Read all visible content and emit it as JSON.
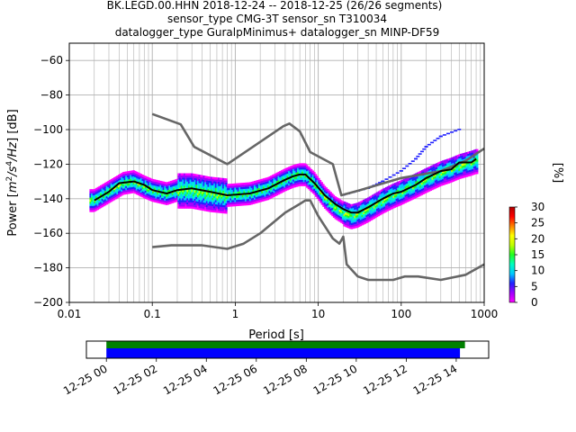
{
  "title_lines": [
    "BK.LEGD.00.HHN   2018-12-24 -- 2018-12-25  (26/26 segments)",
    "sensor_type CMG-3T sensor_sn T310034",
    "datalogger_type GuralpMinimus+ datalogger_sn MINP-DF59"
  ],
  "chart_data": [
    {
      "type": "heatmap",
      "title": "BK.LEGD.00.HHN   2018-12-24 -- 2018-12-25  (26/26 segments)",
      "xlabel": "Period [s]",
      "ylabel_parts": [
        "Power [",
        "m",
        "2",
        "/s",
        "4",
        "/Hz",
        "] [dB]"
      ],
      "xscale": "log",
      "xlim": [
        0.01,
        1000
      ],
      "ylim": [
        -200,
        -50
      ],
      "xticks": [
        0.01,
        0.1,
        1,
        10,
        100,
        1000
      ],
      "xtick_labels": [
        "0.01",
        "0.1",
        "1",
        "10",
        "100",
        "1000"
      ],
      "yticks": [
        -60,
        -80,
        -100,
        -120,
        -140,
        -160,
        -180,
        -200
      ],
      "ytick_labels": [
        "−60",
        "−80",
        "−100",
        "−120",
        "−140",
        "−160",
        "−180",
        "−200"
      ],
      "grid": true,
      "colorbar": {
        "label": "[%]",
        "range": [
          0,
          30
        ],
        "ticks": [
          0,
          5,
          10,
          15,
          20,
          25,
          30
        ],
        "tick_labels": [
          "0",
          "5",
          "10",
          "15",
          "20",
          "25",
          "30"
        ],
        "colors": [
          "#ff00ff",
          "#a000ff",
          "#2020ff",
          "#00c8ff",
          "#00ffc0",
          "#20ff20",
          "#c0ff00",
          "#ffff00",
          "#ff8000",
          "#ff0000",
          "#b00000"
        ]
      },
      "series": [
        {
          "role": "noise-model-high",
          "color": "#666666",
          "points": [
            [
              0.1,
              -91
            ],
            [
              0.22,
              -97
            ],
            [
              0.32,
              -110
            ],
            [
              0.8,
              -120
            ],
            [
              3.8,
              -98
            ],
            [
              4.5,
              -96.5
            ],
            [
              6,
              -101
            ],
            [
              8,
              -113
            ],
            [
              15,
              -120
            ],
            [
              19,
              -138
            ],
            [
              32,
              -135
            ],
            [
              100,
              -128
            ],
            [
              300,
              -124
            ],
            [
              600,
              -118
            ],
            [
              1000,
              -111
            ]
          ]
        },
        {
          "role": "noise-model-low",
          "color": "#666666",
          "points": [
            [
              0.1,
              -168
            ],
            [
              0.17,
              -167
            ],
            [
              0.4,
              -167
            ],
            [
              0.8,
              -169
            ],
            [
              1.26,
              -166
            ],
            [
              2,
              -160
            ],
            [
              4,
              -148
            ],
            [
              6,
              -143
            ],
            [
              7,
              -141
            ],
            [
              8,
              -141
            ],
            [
              10,
              -150
            ],
            [
              15,
              -163
            ],
            [
              18,
              -166
            ],
            [
              20,
              -162
            ],
            [
              22,
              -178
            ],
            [
              30,
              -185
            ],
            [
              40,
              -187
            ],
            [
              80,
              -187
            ],
            [
              110,
              -185
            ],
            [
              160,
              -185
            ],
            [
              300,
              -187
            ],
            [
              600,
              -184
            ],
            [
              1000,
              -178
            ]
          ]
        },
        {
          "role": "mode",
          "color": "#000000",
          "points": [
            [
              0.02,
              -141
            ],
            [
              0.03,
              -136
            ],
            [
              0.04,
              -131
            ],
            [
              0.06,
              -130
            ],
            [
              0.08,
              -132
            ],
            [
              0.1,
              -135
            ],
            [
              0.15,
              -137
            ],
            [
              0.2,
              -135
            ],
            [
              0.3,
              -134
            ],
            [
              0.5,
              -136
            ],
            [
              0.8,
              -138
            ],
            [
              1.5,
              -137
            ],
            [
              2.5,
              -134
            ],
            [
              4,
              -129
            ],
            [
              5,
              -127
            ],
            [
              6,
              -126
            ],
            [
              7,
              -126
            ],
            [
              9,
              -131
            ],
            [
              12,
              -138
            ],
            [
              16,
              -143
            ],
            [
              20,
              -146
            ],
            [
              25,
              -148
            ],
            [
              30,
              -148
            ],
            [
              40,
              -145
            ],
            [
              60,
              -140
            ],
            [
              80,
              -137
            ],
            [
              100,
              -136
            ],
            [
              150,
              -132
            ],
            [
              200,
              -128
            ],
            [
              300,
              -124
            ],
            [
              400,
              -123
            ],
            [
              500,
              -119
            ],
            [
              700,
              -119
            ],
            [
              800,
              -117
            ]
          ]
        }
      ],
      "density_center": [
        [
          0.02,
          -141
        ],
        [
          0.03,
          -136
        ],
        [
          0.045,
          -131
        ],
        [
          0.06,
          -130
        ],
        [
          0.08,
          -133
        ],
        [
          0.1,
          -135
        ],
        [
          0.15,
          -137
        ],
        [
          0.2,
          -135
        ],
        [
          0.3,
          -135
        ],
        [
          0.5,
          -137
        ],
        [
          0.8,
          -138
        ],
        [
          1.5,
          -137
        ],
        [
          2.5,
          -134
        ],
        [
          4,
          -129
        ],
        [
          5,
          -127
        ],
        [
          6,
          -126
        ],
        [
          7,
          -126
        ],
        [
          9,
          -131
        ],
        [
          12,
          -139
        ],
        [
          16,
          -145
        ],
        [
          20,
          -148
        ],
        [
          25,
          -150
        ],
        [
          30,
          -149
        ],
        [
          40,
          -146
        ],
        [
          60,
          -141
        ],
        [
          80,
          -138
        ],
        [
          100,
          -136
        ],
        [
          150,
          -132
        ],
        [
          200,
          -129
        ],
        [
          300,
          -125
        ],
        [
          400,
          -123
        ],
        [
          500,
          -121
        ],
        [
          700,
          -119
        ],
        [
          800,
          -118
        ]
      ],
      "outlier_arm": [
        [
          20,
          -138
        ],
        [
          40,
          -134
        ],
        [
          60,
          -130
        ],
        [
          100,
          -124
        ],
        [
          150,
          -117
        ],
        [
          200,
          -110
        ],
        [
          300,
          -104
        ],
        [
          500,
          -100
        ]
      ]
    },
    {
      "type": "timeline",
      "xtick_labels": [
        "12-25 00",
        "12-25 02",
        "12-25 04",
        "12-25 06",
        "12-25 08",
        "12-25 10",
        "12-25 12",
        "12-25 14"
      ],
      "xlim_hours": [
        -0.8,
        15.3
      ],
      "bars": [
        {
          "color": "#008000",
          "start_hours": 0,
          "end_hours": 14.35
        },
        {
          "color": "#0000ff",
          "start_hours": 0,
          "end_hours": 14.15
        }
      ]
    }
  ]
}
